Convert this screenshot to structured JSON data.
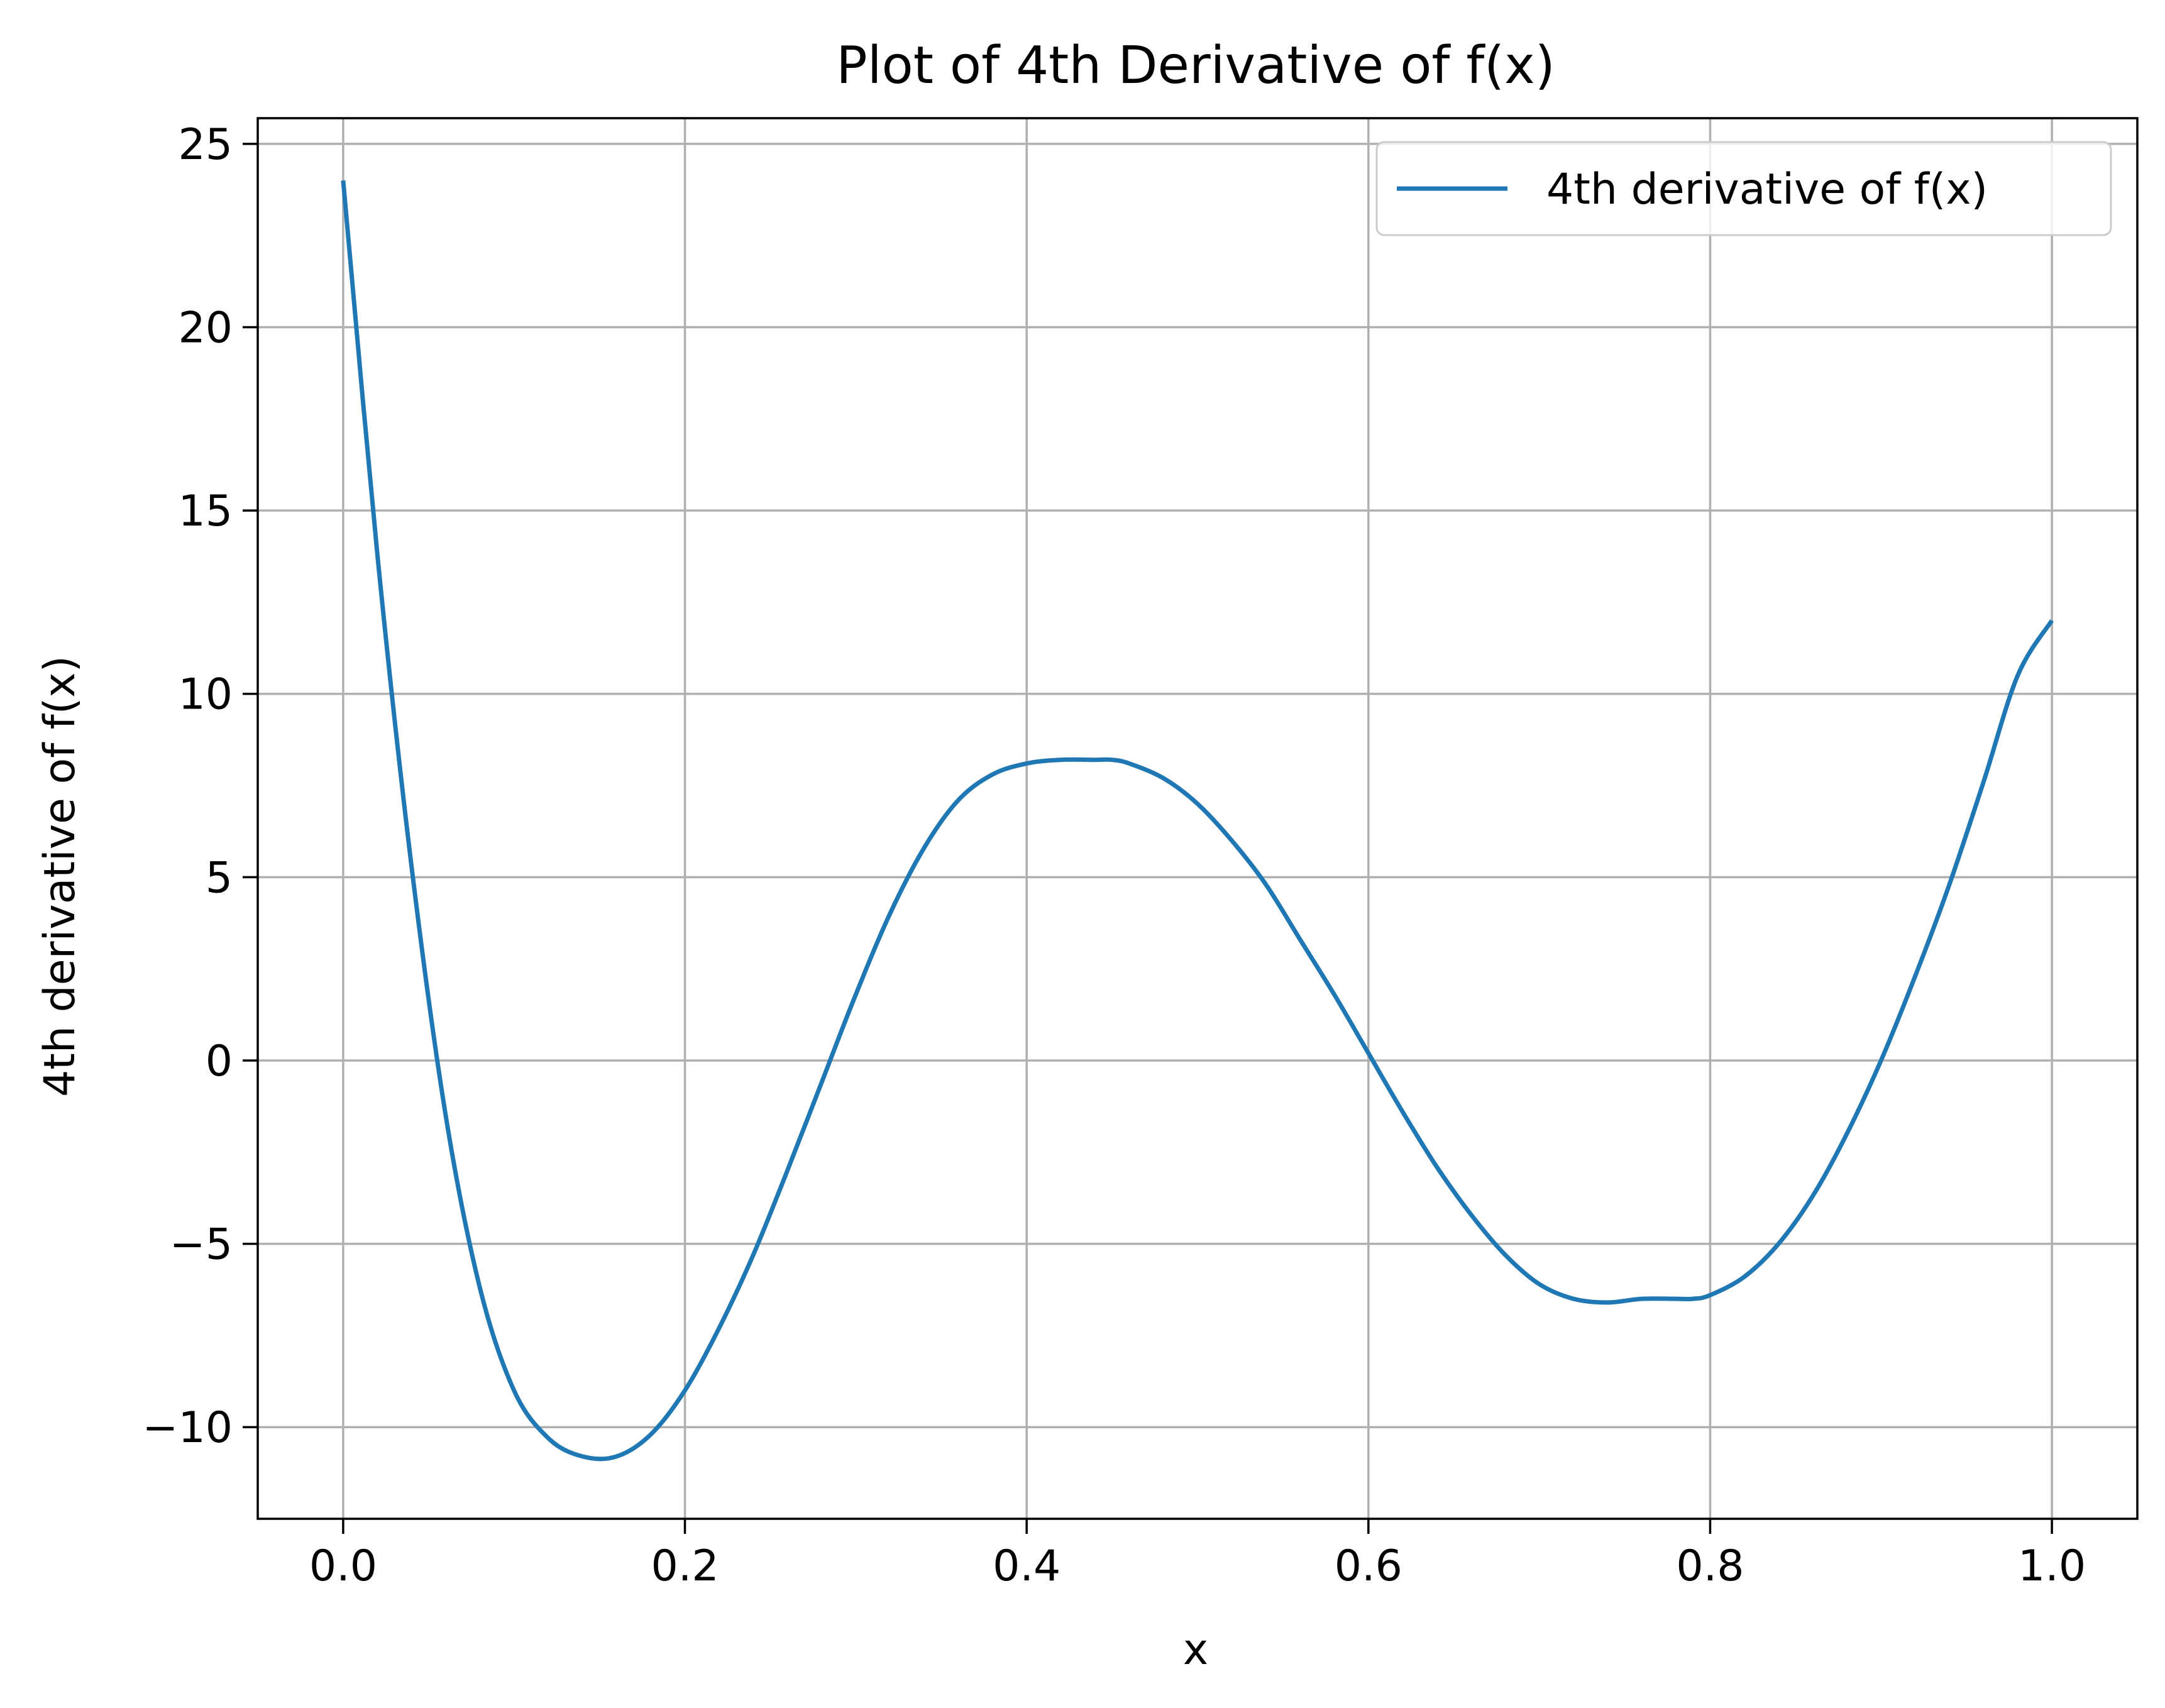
{
  "chart_data": {
    "type": "line",
    "title": "Plot of 4th Derivative of f(x)",
    "xlabel": "x",
    "ylabel": "4th derivative of f(x)",
    "xlim": [
      -0.05,
      1.05
    ],
    "ylim": [
      -12.5,
      25.7
    ],
    "xticks": [
      0.0,
      0.2,
      0.4,
      0.6,
      0.8,
      1.0
    ],
    "xtick_labels": [
      "0.0",
      "0.2",
      "0.4",
      "0.6",
      "0.8",
      "1.0"
    ],
    "yticks": [
      -10,
      -5,
      0,
      5,
      10,
      15,
      20,
      25
    ],
    "ytick_labels": [
      "−10",
      "−5",
      "0",
      "5",
      "10",
      "15",
      "20",
      "25"
    ],
    "grid": true,
    "legend_position": "upper right",
    "series": [
      {
        "name": "4th derivative of f(x)",
        "color": "#1f77b4",
        "x": [
          0.0,
          0.02,
          0.04,
          0.06,
          0.08,
          0.1,
          0.12,
          0.14,
          0.16,
          0.18,
          0.2,
          0.22,
          0.24,
          0.26,
          0.28,
          0.3,
          0.32,
          0.34,
          0.36,
          0.38,
          0.4,
          0.42,
          0.44,
          0.45,
          0.46,
          0.48,
          0.5,
          0.52,
          0.54,
          0.56,
          0.58,
          0.6,
          0.62,
          0.64,
          0.66,
          0.68,
          0.7,
          0.72,
          0.74,
          0.76,
          0.78,
          0.79,
          0.8,
          0.82,
          0.84,
          0.86,
          0.88,
          0.9,
          0.92,
          0.94,
          0.96,
          0.98,
          1.0
        ],
        "y": [
          24.0,
          13.8,
          5.3,
          -1.5,
          -6.2,
          -9.0,
          -10.3,
          -10.8,
          -10.8,
          -10.2,
          -9.0,
          -7.3,
          -5.3,
          -3.0,
          -0.6,
          1.8,
          4.0,
          5.8,
          7.1,
          7.8,
          8.1,
          8.2,
          8.2,
          8.2,
          8.1,
          7.7,
          7.0,
          6.0,
          4.8,
          3.3,
          1.8,
          0.2,
          -1.4,
          -2.9,
          -4.2,
          -5.3,
          -6.1,
          -6.5,
          -6.6,
          -6.5,
          -6.5,
          -6.5,
          -6.4,
          -5.9,
          -5.0,
          -3.7,
          -2.0,
          0.0,
          2.3,
          4.8,
          7.6,
          10.5,
          12.0
        ]
      }
    ]
  }
}
